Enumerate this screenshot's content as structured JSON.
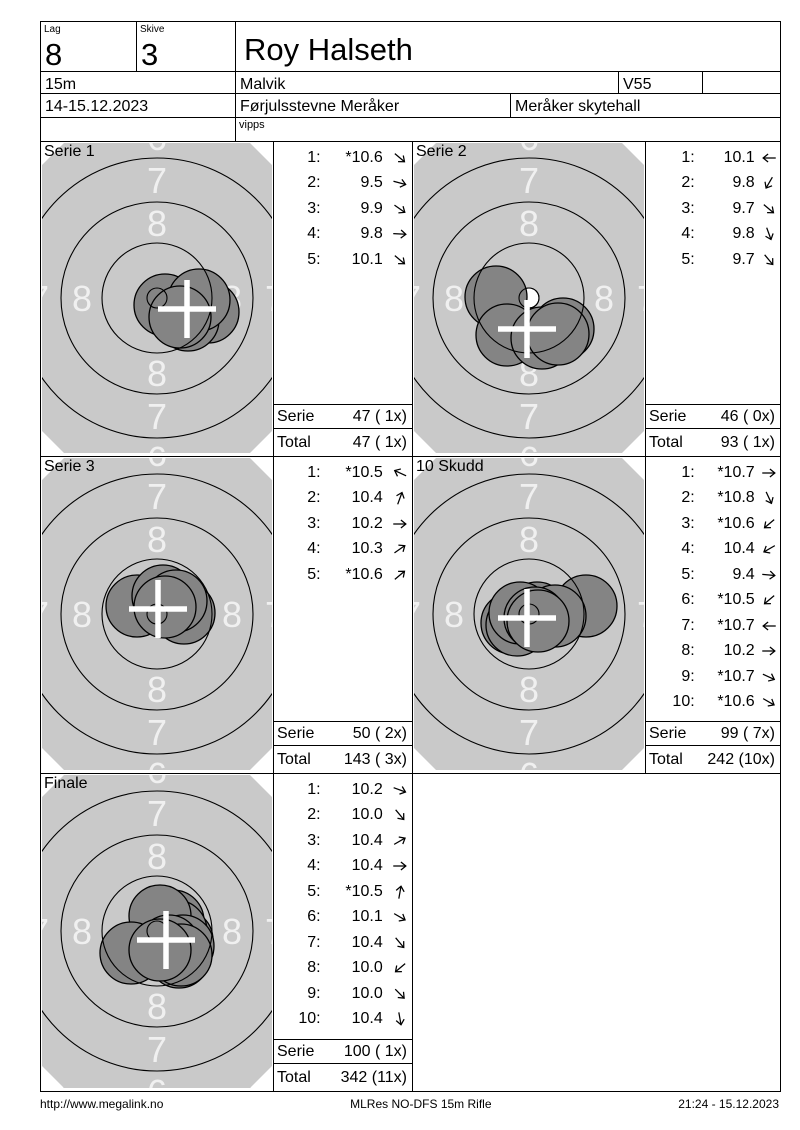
{
  "header": {
    "lag_label": "Lag",
    "lag_value": "8",
    "skive_label": "Skive",
    "skive_value": "3",
    "shooter_name": "Roy Halseth",
    "distance": "15m",
    "club": "Malvik",
    "class": "V55",
    "date_range": "14-15.12.2023",
    "event": "Førjulsstevne Meråker",
    "venue": "Meråker skytehall",
    "note": "vipps"
  },
  "footer": {
    "left": "http://www.megalink.no",
    "center": "MLRes NO-DFS 15m Rifle",
    "right": "21:24 - 15.12.2023"
  },
  "colors": {
    "target_bg": "#c9c9c9",
    "shot_fill": "#848484",
    "ring_line": "#000000",
    "ring_label": "#f0f0f0",
    "cross": "#ffffff"
  },
  "target_face": {
    "ring_radii": [
      10,
      55,
      96,
      140,
      183
    ],
    "center_dot_radius": 10,
    "shot_radius": 31,
    "ring_labels": [
      {
        "value": "8",
        "radius": 75
      },
      {
        "value": "7",
        "radius": 118
      },
      {
        "value": "6",
        "radius": 161
      }
    ]
  },
  "series": [
    {
      "name": "Serie 1",
      "serie_label": "Serie",
      "total_label": "Total",
      "serie_sum": "47 ( 1x)",
      "total_sum": "47 ( 1x)",
      "mpi": {
        "x": 30,
        "y": 11
      },
      "shots": [
        {
          "n": "1:",
          "value": "*10.6",
          "dir": 40,
          "x": 8,
          "y": 7
        },
        {
          "n": "2:",
          "value": "9.5",
          "dir": 15,
          "x": 51,
          "y": 14
        },
        {
          "n": "3:",
          "value": "9.9",
          "dir": 35,
          "x": 31,
          "y": 22
        },
        {
          "n": "4:",
          "value": "9.8",
          "dir": 3,
          "x": 42,
          "y": 2
        },
        {
          "n": "5:",
          "value": "10.1",
          "dir": 40,
          "x": 23,
          "y": 19
        }
      ]
    },
    {
      "name": "Serie 2",
      "serie_label": "Serie",
      "total_label": "Total",
      "serie_sum": "46 ( 0x)",
      "total_sum": "93 ( 1x)",
      "mpi": {
        "x": -2,
        "y": 31
      },
      "shots": [
        {
          "n": "1:",
          "value": "10.1",
          "dir": 180,
          "x": -33,
          "y": -1
        },
        {
          "n": "2:",
          "value": "9.8",
          "dir": 120,
          "x": -22,
          "y": 37
        },
        {
          "n": "3:",
          "value": "9.7",
          "dir": 40,
          "x": 34,
          "y": 31
        },
        {
          "n": "4:",
          "value": "9.8",
          "dir": 70,
          "x": 13,
          "y": 40
        },
        {
          "n": "5:",
          "value": "9.7",
          "dir": 50,
          "x": 29,
          "y": 36
        }
      ]
    },
    {
      "name": "Serie 3",
      "serie_label": "Serie",
      "total_label": "Total",
      "serie_sum": "50 ( 2x)",
      "total_sum": "143 ( 3x)",
      "mpi": {
        "x": 1,
        "y": -5
      },
      "shots": [
        {
          "n": "1:",
          "value": "*10.5",
          "dir": -155,
          "x": -20,
          "y": -8
        },
        {
          "n": "2:",
          "value": "10.4",
          "dir": -70,
          "x": 6,
          "y": -18
        },
        {
          "n": "3:",
          "value": "10.2",
          "dir": 0,
          "x": 27,
          "y": -1
        },
        {
          "n": "4:",
          "value": "10.3",
          "dir": -35,
          "x": 19,
          "y": -13
        },
        {
          "n": "5:",
          "value": "*10.6",
          "dir": -40,
          "x": 8,
          "y": -7
        }
      ]
    },
    {
      "name": "10 Skudd",
      "serie_label": "Serie",
      "total_label": "Total",
      "serie_sum": "99 ( 7x)",
      "total_sum": "242 (10x)",
      "mpi": {
        "x": -2,
        "y": 4
      },
      "shots": [
        {
          "n": "1:",
          "value": "*10.7",
          "dir": 0,
          "x": 8,
          "y": -1
        },
        {
          "n": "2:",
          "value": "*10.8",
          "dir": 65,
          "x": 1,
          "y": 4
        },
        {
          "n": "3:",
          "value": "*10.6",
          "dir": 140,
          "x": -9,
          "y": 6
        },
        {
          "n": "4:",
          "value": "10.4",
          "dir": 150,
          "x": -17,
          "y": 9
        },
        {
          "n": "5:",
          "value": "9.4",
          "dir": 5,
          "x": 57,
          "y": -8
        },
        {
          "n": "6:",
          "value": "*10.5",
          "dir": 140,
          "x": -12,
          "y": 11
        },
        {
          "n": "7:",
          "value": "*10.7",
          "dir": 180,
          "x": -9,
          "y": -1
        },
        {
          "n": "8:",
          "value": "10.2",
          "dir": 0,
          "x": 26,
          "y": 2
        },
        {
          "n": "9:",
          "value": "*10.7",
          "dir": 25,
          "x": 6,
          "y": 4
        },
        {
          "n": "10:",
          "value": "*10.6",
          "dir": 30,
          "x": 9,
          "y": 7
        }
      ]
    },
    {
      "name": "Finale",
      "serie_label": "Serie",
      "total_label": "Total",
      "serie_sum": "100 ( 1x)",
      "total_sum": "342 (11x)",
      "mpi": {
        "x": 9,
        "y": 9
      },
      "shots": [
        {
          "n": "1:",
          "value": "10.2",
          "dir": 20,
          "x": 25,
          "y": 9
        },
        {
          "n": "2:",
          "value": "10.0",
          "dir": 50,
          "x": 22,
          "y": 26
        },
        {
          "n": "3:",
          "value": "10.4",
          "dir": -30,
          "x": 16,
          "y": -10
        },
        {
          "n": "4:",
          "value": "10.4",
          "dir": 0,
          "x": 19,
          "y": 0
        },
        {
          "n": "5:",
          "value": "*10.5",
          "dir": -80,
          "x": 3,
          "y": -15
        },
        {
          "n": "6:",
          "value": "10.1",
          "dir": 30,
          "x": 26,
          "y": 15
        },
        {
          "n": "7:",
          "value": "10.4",
          "dir": 50,
          "x": 12,
          "y": 15
        },
        {
          "n": "8:",
          "value": "10.0",
          "dir": 140,
          "x": -26,
          "y": 22
        },
        {
          "n": "9:",
          "value": "10.0",
          "dir": 45,
          "x": 24,
          "y": 24
        },
        {
          "n": "10:",
          "value": "10.4",
          "dir": 80,
          "x": 3,
          "y": 19
        }
      ]
    }
  ]
}
